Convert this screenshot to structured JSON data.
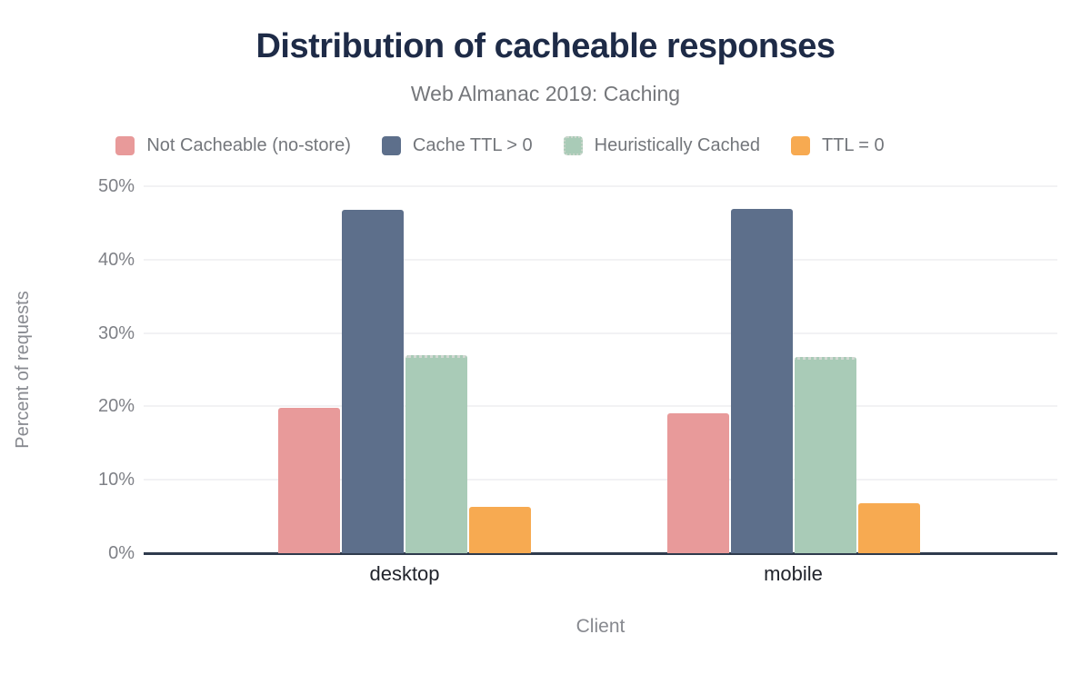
{
  "header": {
    "title": "Distribution of cacheable responses",
    "subtitle": "Web Almanac 2019: Caching"
  },
  "chart_data": {
    "type": "bar",
    "categories": [
      "desktop",
      "mobile"
    ],
    "series": [
      {
        "name": "Not Cacheable (no-store)",
        "color": "#e89a9a",
        "values": [
          19.8,
          19.1
        ]
      },
      {
        "name": "Cache TTL > 0",
        "color": "#5d6f8b",
        "values": [
          46.8,
          46.9
        ]
      },
      {
        "name": "Heuristically Cached",
        "color": "#a9cbb7",
        "pattern": "dotted-border",
        "values": [
          27.0,
          26.8
        ]
      },
      {
        "name": "TTL = 0",
        "color": "#f7aa51",
        "values": [
          6.3,
          6.8
        ]
      }
    ],
    "xlabel": "Client",
    "ylabel": "Percent of requests",
    "ylim": [
      0,
      50
    ],
    "yticks": [
      "0%",
      "10%",
      "20%",
      "30%",
      "40%",
      "50%"
    ],
    "grid": true,
    "legend_position": "top"
  },
  "colors": {
    "title_navy": "#1e2b47",
    "axis_line": "#2f3b4d",
    "gridline": "#f2f2f4",
    "tick_label": "#7f8187",
    "category_label": "#21242c",
    "axis_title": "#87898f",
    "subtitle_gray": "#75777b"
  }
}
